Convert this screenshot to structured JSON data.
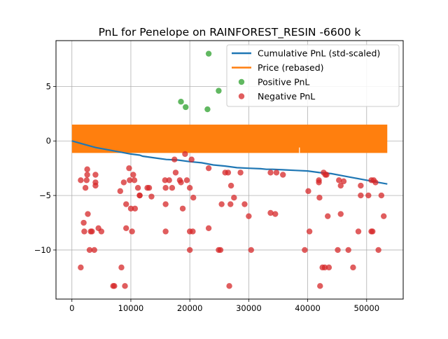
{
  "chart_data": {
    "type": "scatter",
    "title": "PnL for Penelope on RAINFOREST_RESIN -6600 k",
    "xlabel": "",
    "ylabel": "",
    "xlim": [
      -2700,
      56200
    ],
    "ylim": [
      -14.5,
      9.2
    ],
    "xticks": [
      0,
      10000,
      20000,
      30000,
      40000,
      50000
    ],
    "xtick_labels": [
      "0",
      "10000",
      "20000",
      "30000",
      "40000",
      "50000"
    ],
    "yticks": [
      -10,
      -5,
      0,
      5
    ],
    "ytick_labels": [
      "−10",
      "−5",
      "0",
      "5"
    ],
    "grid": true,
    "legend_position": "top-right",
    "colors": {
      "cumulative": "#1f77b4",
      "price": "#ff7f0e",
      "positive": "#2ca02c",
      "negative": "#d62728"
    },
    "series": [
      {
        "name": "Cumulative PnL (std-scaled)",
        "kind": "line",
        "points": [
          [
            0,
            0
          ],
          [
            2000,
            -0.3
          ],
          [
            4000,
            -0.6
          ],
          [
            6000,
            -0.8
          ],
          [
            8000,
            -1.0
          ],
          [
            10000,
            -1.2
          ],
          [
            11500,
            -1.3
          ],
          [
            12000,
            -1.4
          ],
          [
            14000,
            -1.55
          ],
          [
            16000,
            -1.7
          ],
          [
            18000,
            -1.75
          ],
          [
            20000,
            -1.9
          ],
          [
            22000,
            -2.0
          ],
          [
            24000,
            -2.2
          ],
          [
            26000,
            -2.3
          ],
          [
            28000,
            -2.45
          ],
          [
            30000,
            -2.5
          ],
          [
            32000,
            -2.55
          ],
          [
            33000,
            -2.6
          ],
          [
            34000,
            -2.6
          ],
          [
            36000,
            -2.65
          ],
          [
            38000,
            -2.7
          ],
          [
            40000,
            -2.75
          ],
          [
            42000,
            -2.9
          ],
          [
            44000,
            -3.0
          ],
          [
            46000,
            -3.2
          ],
          [
            48000,
            -3.4
          ],
          [
            50000,
            -3.6
          ],
          [
            52000,
            -3.8
          ],
          [
            53500,
            -3.95
          ]
        ]
      },
      {
        "name": "Price (rebased)",
        "kind": "band",
        "x_range": [
          0,
          53500
        ],
        "y_range": [
          -1.1,
          1.5
        ],
        "gap_x": 38600
      },
      {
        "name": "Positive PnL",
        "kind": "scatter",
        "points": [
          [
            18500,
            3.6
          ],
          [
            19300,
            3.1
          ],
          [
            23000,
            2.9
          ],
          [
            23200,
            8.0
          ],
          [
            24900,
            4.6
          ]
        ]
      },
      {
        "name": "Negative PnL",
        "kind": "scatter",
        "points": [
          [
            1500,
            -3.6
          ],
          [
            1500,
            -11.6
          ],
          [
            2000,
            -7.5
          ],
          [
            2100,
            -8.3
          ],
          [
            2300,
            -4.3
          ],
          [
            2500,
            -3.6
          ],
          [
            2600,
            -2.6
          ],
          [
            2600,
            -3.1
          ],
          [
            2700,
            -6.7
          ],
          [
            3000,
            -10.0
          ],
          [
            3200,
            -8.3
          ],
          [
            3400,
            -8.3
          ],
          [
            3800,
            -10.0
          ],
          [
            4000,
            -3.1
          ],
          [
            4000,
            -3.8
          ],
          [
            4000,
            -4.1
          ],
          [
            4500,
            -8.0
          ],
          [
            5000,
            -8.3
          ],
          [
            7000,
            -13.3
          ],
          [
            7200,
            -13.3
          ],
          [
            8200,
            -4.6
          ],
          [
            8400,
            -11.6
          ],
          [
            8800,
            -3.8
          ],
          [
            9000,
            -13.3
          ],
          [
            9200,
            -5.8
          ],
          [
            9200,
            -8.0
          ],
          [
            9700,
            -2.5
          ],
          [
            9800,
            -3.6
          ],
          [
            10000,
            -6.2
          ],
          [
            10200,
            -8.3
          ],
          [
            10400,
            -3.1
          ],
          [
            10600,
            -3.6
          ],
          [
            10700,
            -6.2
          ],
          [
            11200,
            -4.3
          ],
          [
            11500,
            -5.0
          ],
          [
            11500,
            -5.0
          ],
          [
            12800,
            -4.3
          ],
          [
            13100,
            -4.3
          ],
          [
            13500,
            -5.1
          ],
          [
            15800,
            -3.6
          ],
          [
            15900,
            -4.3
          ],
          [
            15900,
            -5.8
          ],
          [
            15900,
            -8.3
          ],
          [
            16500,
            -3.6
          ],
          [
            17000,
            -4.3
          ],
          [
            17400,
            -1.7
          ],
          [
            17600,
            -2.9
          ],
          [
            18300,
            -3.6
          ],
          [
            18500,
            -3.8
          ],
          [
            18800,
            -6.2
          ],
          [
            19200,
            -1.2
          ],
          [
            19500,
            -3.6
          ],
          [
            20000,
            -4.3
          ],
          [
            20000,
            -8.3
          ],
          [
            20000,
            -10.0
          ],
          [
            20300,
            -1.7
          ],
          [
            20500,
            -8.3
          ],
          [
            20600,
            -5.2
          ],
          [
            23200,
            -8.0
          ],
          [
            23200,
            -2.5
          ],
          [
            24900,
            -10.0
          ],
          [
            25200,
            -10.0
          ],
          [
            25400,
            -5.8
          ],
          [
            26000,
            -2.9
          ],
          [
            26500,
            -2.9
          ],
          [
            26700,
            -13.3
          ],
          [
            26900,
            -5.8
          ],
          [
            27000,
            -4.1
          ],
          [
            27500,
            -5.2
          ],
          [
            28600,
            -2.9
          ],
          [
            29300,
            -5.8
          ],
          [
            30000,
            -6.9
          ],
          [
            30400,
            -10.0
          ],
          [
            33700,
            -6.6
          ],
          [
            33700,
            -2.9
          ],
          [
            34500,
            -6.7
          ],
          [
            34700,
            -2.9
          ],
          [
            35800,
            -3.1
          ],
          [
            39500,
            -10.0
          ],
          [
            40100,
            -4.6
          ],
          [
            40300,
            -8.3
          ],
          [
            41900,
            -3.6
          ],
          [
            41900,
            -3.8
          ],
          [
            42000,
            -5.2
          ],
          [
            42100,
            -13.3
          ],
          [
            42500,
            -11.6
          ],
          [
            42700,
            -2.9
          ],
          [
            42900,
            -11.6
          ],
          [
            43000,
            -3.1
          ],
          [
            43200,
            -3.1
          ],
          [
            43400,
            -6.9
          ],
          [
            43600,
            -11.6
          ],
          [
            45100,
            -10.0
          ],
          [
            45300,
            -3.6
          ],
          [
            45600,
            -4.1
          ],
          [
            45600,
            -6.7
          ],
          [
            46100,
            -3.7
          ],
          [
            46900,
            -10.0
          ],
          [
            47700,
            -11.6
          ],
          [
            48600,
            -8.3
          ],
          [
            49000,
            -4.1
          ],
          [
            49000,
            -5.0
          ],
          [
            50300,
            -5.0
          ],
          [
            50800,
            -3.6
          ],
          [
            50800,
            -8.3
          ],
          [
            51000,
            -8.3
          ],
          [
            51200,
            -3.6
          ],
          [
            51500,
            -3.8
          ],
          [
            52000,
            -10.0
          ],
          [
            52500,
            -5.0
          ],
          [
            52900,
            -6.9
          ]
        ]
      }
    ]
  }
}
